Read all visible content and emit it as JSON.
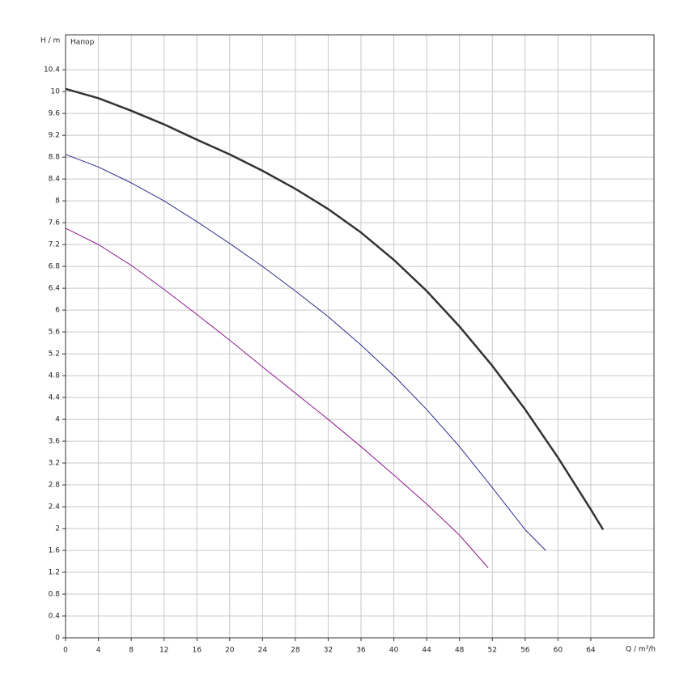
{
  "chart_data": {
    "type": "line",
    "ylabel": "H / m",
    "xlabel": "Q / m³/h",
    "annotation": "Напор",
    "xlim": [
      0,
      71.7
    ],
    "ylim": [
      0,
      11.04
    ],
    "xticks": [
      0,
      4,
      8,
      12,
      16,
      20,
      24,
      28,
      32,
      36,
      40,
      44,
      48,
      52,
      56,
      60,
      64
    ],
    "yticks": [
      0,
      0.4,
      0.8,
      1.2,
      1.6,
      2,
      2.4,
      2.8,
      3.2,
      3.6,
      4,
      4.4,
      4.8,
      5.2,
      5.6,
      6,
      6.4,
      6.8,
      7.2,
      7.6,
      8,
      8.4,
      8.8,
      9.2,
      9.6,
      10,
      10.4
    ],
    "grid": true,
    "series": [
      {
        "color": "#333333",
        "width": 2.5,
        "x": [
          0,
          4,
          8,
          12,
          16,
          20,
          24,
          28,
          32,
          36,
          40,
          44,
          48,
          52,
          56,
          60,
          64,
          65.5
        ],
        "values": [
          10.05,
          9.88,
          9.65,
          9.4,
          9.12,
          8.85,
          8.55,
          8.22,
          7.85,
          7.42,
          6.92,
          6.35,
          5.7,
          4.98,
          4.18,
          3.3,
          2.35,
          1.98
        ]
      },
      {
        "color": "#2a2a8c",
        "width": 1,
        "x": [
          0,
          4,
          8,
          12,
          16,
          20,
          24,
          28,
          32,
          36,
          40,
          44,
          48,
          52,
          56,
          58.5
        ],
        "values": [
          8.85,
          8.62,
          8.33,
          8.0,
          7.62,
          7.22,
          6.8,
          6.35,
          5.88,
          5.36,
          4.8,
          4.18,
          3.5,
          2.75,
          1.98,
          1.6
        ]
      },
      {
        "color": "#8c1a8c",
        "width": 1,
        "x": [
          0,
          4,
          8,
          12,
          16,
          20,
          24,
          28,
          32,
          36,
          40,
          44,
          48,
          51.5
        ],
        "values": [
          7.5,
          7.2,
          6.82,
          6.38,
          5.92,
          5.45,
          4.96,
          4.48,
          4.0,
          3.5,
          2.98,
          2.45,
          1.88,
          1.28
        ]
      }
    ]
  }
}
